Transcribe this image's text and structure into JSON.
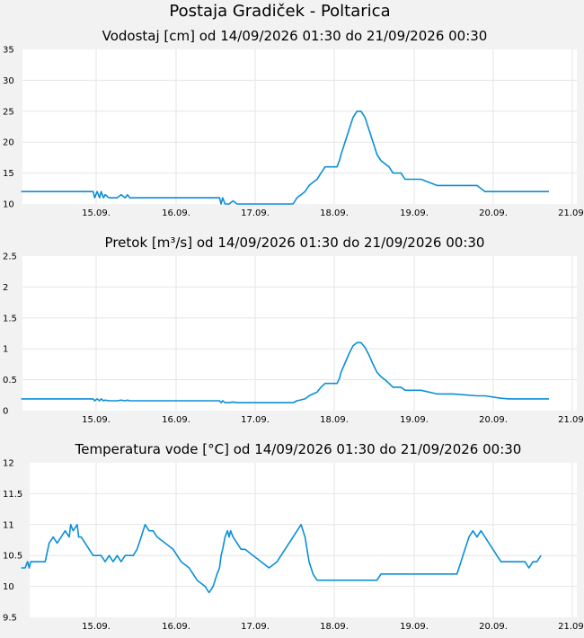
{
  "page_title": "Postaja Gradiček - Poltarica",
  "style": {
    "line_color": "#0a8fd6",
    "plot_bg": "#ffffff",
    "page_bg": "#f2f2f2",
    "grid_color": "#e6e6e6"
  },
  "x_ticks": [
    "15.09.",
    "16.09.",
    "17.09.",
    "18.09.",
    "19.09.",
    "20.09.",
    "21.09."
  ],
  "chart_data": [
    {
      "type": "line",
      "title": "Vodostaj [cm] od 14/09/2026 01:30 do 21/09/2026 00:30",
      "xlim": [
        0,
        7
      ],
      "ylim": [
        10,
        35
      ],
      "grid": true,
      "y_ticks": [
        "35",
        "30",
        "25",
        "20",
        "15",
        "10"
      ],
      "series": [
        {
          "x": [
            0.0,
            0.9,
            0.92,
            0.95,
            0.98,
            1.0,
            1.03,
            1.05,
            1.1,
            1.2,
            1.25,
            1.3,
            1.33,
            1.36,
            1.4,
            1.6,
            2.0,
            2.2,
            2.48,
            2.5,
            2.52,
            2.55,
            2.6,
            2.65,
            2.7,
            3.0,
            3.3,
            3.4,
            3.45,
            3.55,
            3.6,
            3.65,
            3.7,
            3.75,
            3.8,
            3.85,
            3.95,
            3.98,
            4.0,
            4.05,
            4.1,
            4.15,
            4.2,
            4.25,
            4.3,
            4.35,
            4.4,
            4.45,
            4.5,
            4.55,
            4.6,
            4.65,
            4.7,
            4.75,
            4.8,
            4.9,
            5.0,
            5.2,
            5.3,
            5.4,
            5.7,
            5.8,
            6.0,
            6.1,
            6.5,
            6.6
          ],
          "y": [
            12,
            12,
            11,
            12,
            11,
            12,
            11,
            11.5,
            11,
            11,
            11.5,
            11,
            11.5,
            11,
            11,
            11,
            11,
            11,
            11,
            10,
            11,
            10,
            10,
            10.5,
            10,
            10,
            10,
            10,
            11,
            12,
            13,
            13.5,
            14,
            15,
            16,
            16,
            16,
            17,
            18,
            20,
            22,
            24,
            25,
            25,
            24,
            22,
            20,
            18,
            17,
            16.5,
            16,
            15,
            15,
            15,
            14,
            14,
            14,
            13,
            13,
            13,
            13,
            12,
            12,
            12,
            12,
            12
          ]
        }
      ]
    },
    {
      "type": "line",
      "title": "Pretok [m³/s] od 14/09/2026 01:30 do 21/09/2026 00:30",
      "xlim": [
        0,
        7
      ],
      "ylim": [
        0,
        2.5
      ],
      "grid": true,
      "y_ticks": [
        "2.5",
        "2",
        "1.5",
        "1",
        "0.5",
        "0"
      ],
      "series": [
        {
          "x": [
            0.0,
            0.9,
            0.92,
            0.95,
            0.98,
            1.0,
            1.03,
            1.05,
            1.1,
            1.2,
            1.25,
            1.3,
            1.33,
            1.36,
            1.4,
            1.6,
            2.0,
            2.2,
            2.48,
            2.5,
            2.52,
            2.55,
            2.6,
            2.65,
            2.7,
            3.0,
            3.3,
            3.4,
            3.45,
            3.55,
            3.6,
            3.65,
            3.7,
            3.75,
            3.8,
            3.85,
            3.95,
            3.98,
            4.0,
            4.05,
            4.1,
            4.15,
            4.2,
            4.25,
            4.3,
            4.35,
            4.4,
            4.45,
            4.5,
            4.55,
            4.6,
            4.65,
            4.7,
            4.75,
            4.8,
            4.9,
            5.0,
            5.2,
            5.3,
            5.4,
            5.7,
            5.8,
            6.0,
            6.1,
            6.5,
            6.6
          ],
          "y": [
            0.19,
            0.19,
            0.16,
            0.19,
            0.16,
            0.19,
            0.16,
            0.17,
            0.16,
            0.16,
            0.17,
            0.16,
            0.17,
            0.16,
            0.16,
            0.16,
            0.16,
            0.16,
            0.16,
            0.13,
            0.16,
            0.13,
            0.13,
            0.14,
            0.13,
            0.13,
            0.13,
            0.13,
            0.16,
            0.19,
            0.24,
            0.27,
            0.3,
            0.38,
            0.44,
            0.44,
            0.44,
            0.52,
            0.62,
            0.77,
            0.92,
            1.05,
            1.1,
            1.1,
            1.02,
            0.9,
            0.75,
            0.62,
            0.55,
            0.5,
            0.44,
            0.38,
            0.38,
            0.38,
            0.33,
            0.33,
            0.33,
            0.27,
            0.27,
            0.27,
            0.24,
            0.24,
            0.2,
            0.19,
            0.19,
            0.19
          ]
        }
      ]
    },
    {
      "type": "line",
      "title": "Temperatura vode [°C] od 14/09/2026 01:30 do 21/09/2026 00:30",
      "xlim": [
        0,
        7
      ],
      "ylim": [
        9.5,
        12
      ],
      "grid": true,
      "y_ticks": [
        "12",
        "11.5",
        "11",
        "10.5",
        "10",
        "9.5"
      ],
      "series": [
        {
          "x": [
            0.0,
            0.05,
            0.08,
            0.1,
            0.12,
            0.15,
            0.2,
            0.3,
            0.35,
            0.4,
            0.45,
            0.5,
            0.55,
            0.6,
            0.62,
            0.65,
            0.7,
            0.72,
            0.75,
            0.8,
            0.85,
            0.9,
            1.0,
            1.05,
            1.1,
            1.15,
            1.2,
            1.25,
            1.3,
            1.4,
            1.45,
            1.5,
            1.55,
            1.6,
            1.65,
            1.7,
            1.8,
            1.9,
            2.0,
            2.1,
            2.2,
            2.3,
            2.35,
            2.4,
            2.45,
            2.48,
            2.5,
            2.52,
            2.55,
            2.58,
            2.6,
            2.62,
            2.65,
            2.7,
            2.75,
            2.8,
            2.9,
            3.0,
            3.1,
            3.2,
            3.25,
            3.3,
            3.4,
            3.5,
            3.55,
            3.6,
            3.65,
            3.7,
            3.75,
            3.8,
            3.85,
            3.95,
            4.0,
            4.05,
            4.1,
            4.2,
            4.3,
            4.45,
            4.5,
            4.6,
            4.8,
            5.0,
            5.2,
            5.4,
            5.45,
            5.5,
            5.55,
            5.6,
            5.65,
            5.7,
            5.75,
            5.8,
            5.85,
            5.9,
            5.95,
            6.0,
            6.1,
            6.2,
            6.3,
            6.35,
            6.4,
            6.45,
            6.5
          ],
          "y": [
            10.3,
            10.3,
            10.4,
            10.3,
            10.4,
            10.4,
            10.4,
            10.4,
            10.7,
            10.8,
            10.7,
            10.8,
            10.9,
            10.8,
            11.0,
            10.9,
            11.0,
            10.8,
            10.8,
            10.7,
            10.6,
            10.5,
            10.5,
            10.4,
            10.5,
            10.4,
            10.5,
            10.4,
            10.5,
            10.5,
            10.6,
            10.8,
            11.0,
            10.9,
            10.9,
            10.8,
            10.7,
            10.6,
            10.4,
            10.3,
            10.1,
            10.0,
            9.9,
            10.0,
            10.2,
            10.3,
            10.5,
            10.6,
            10.8,
            10.9,
            10.8,
            10.9,
            10.8,
            10.7,
            10.6,
            10.6,
            10.5,
            10.4,
            10.3,
            10.4,
            10.5,
            10.6,
            10.8,
            11.0,
            10.8,
            10.4,
            10.2,
            10.1,
            10.1,
            10.1,
            10.1,
            10.1,
            10.1,
            10.1,
            10.1,
            10.1,
            10.1,
            10.1,
            10.2,
            10.2,
            10.2,
            10.2,
            10.2,
            10.2,
            10.2,
            10.4,
            10.6,
            10.8,
            10.9,
            10.8,
            10.9,
            10.8,
            10.7,
            10.6,
            10.5,
            10.4,
            10.4,
            10.4,
            10.4,
            10.3,
            10.4,
            10.4,
            10.5
          ]
        }
      ]
    }
  ]
}
